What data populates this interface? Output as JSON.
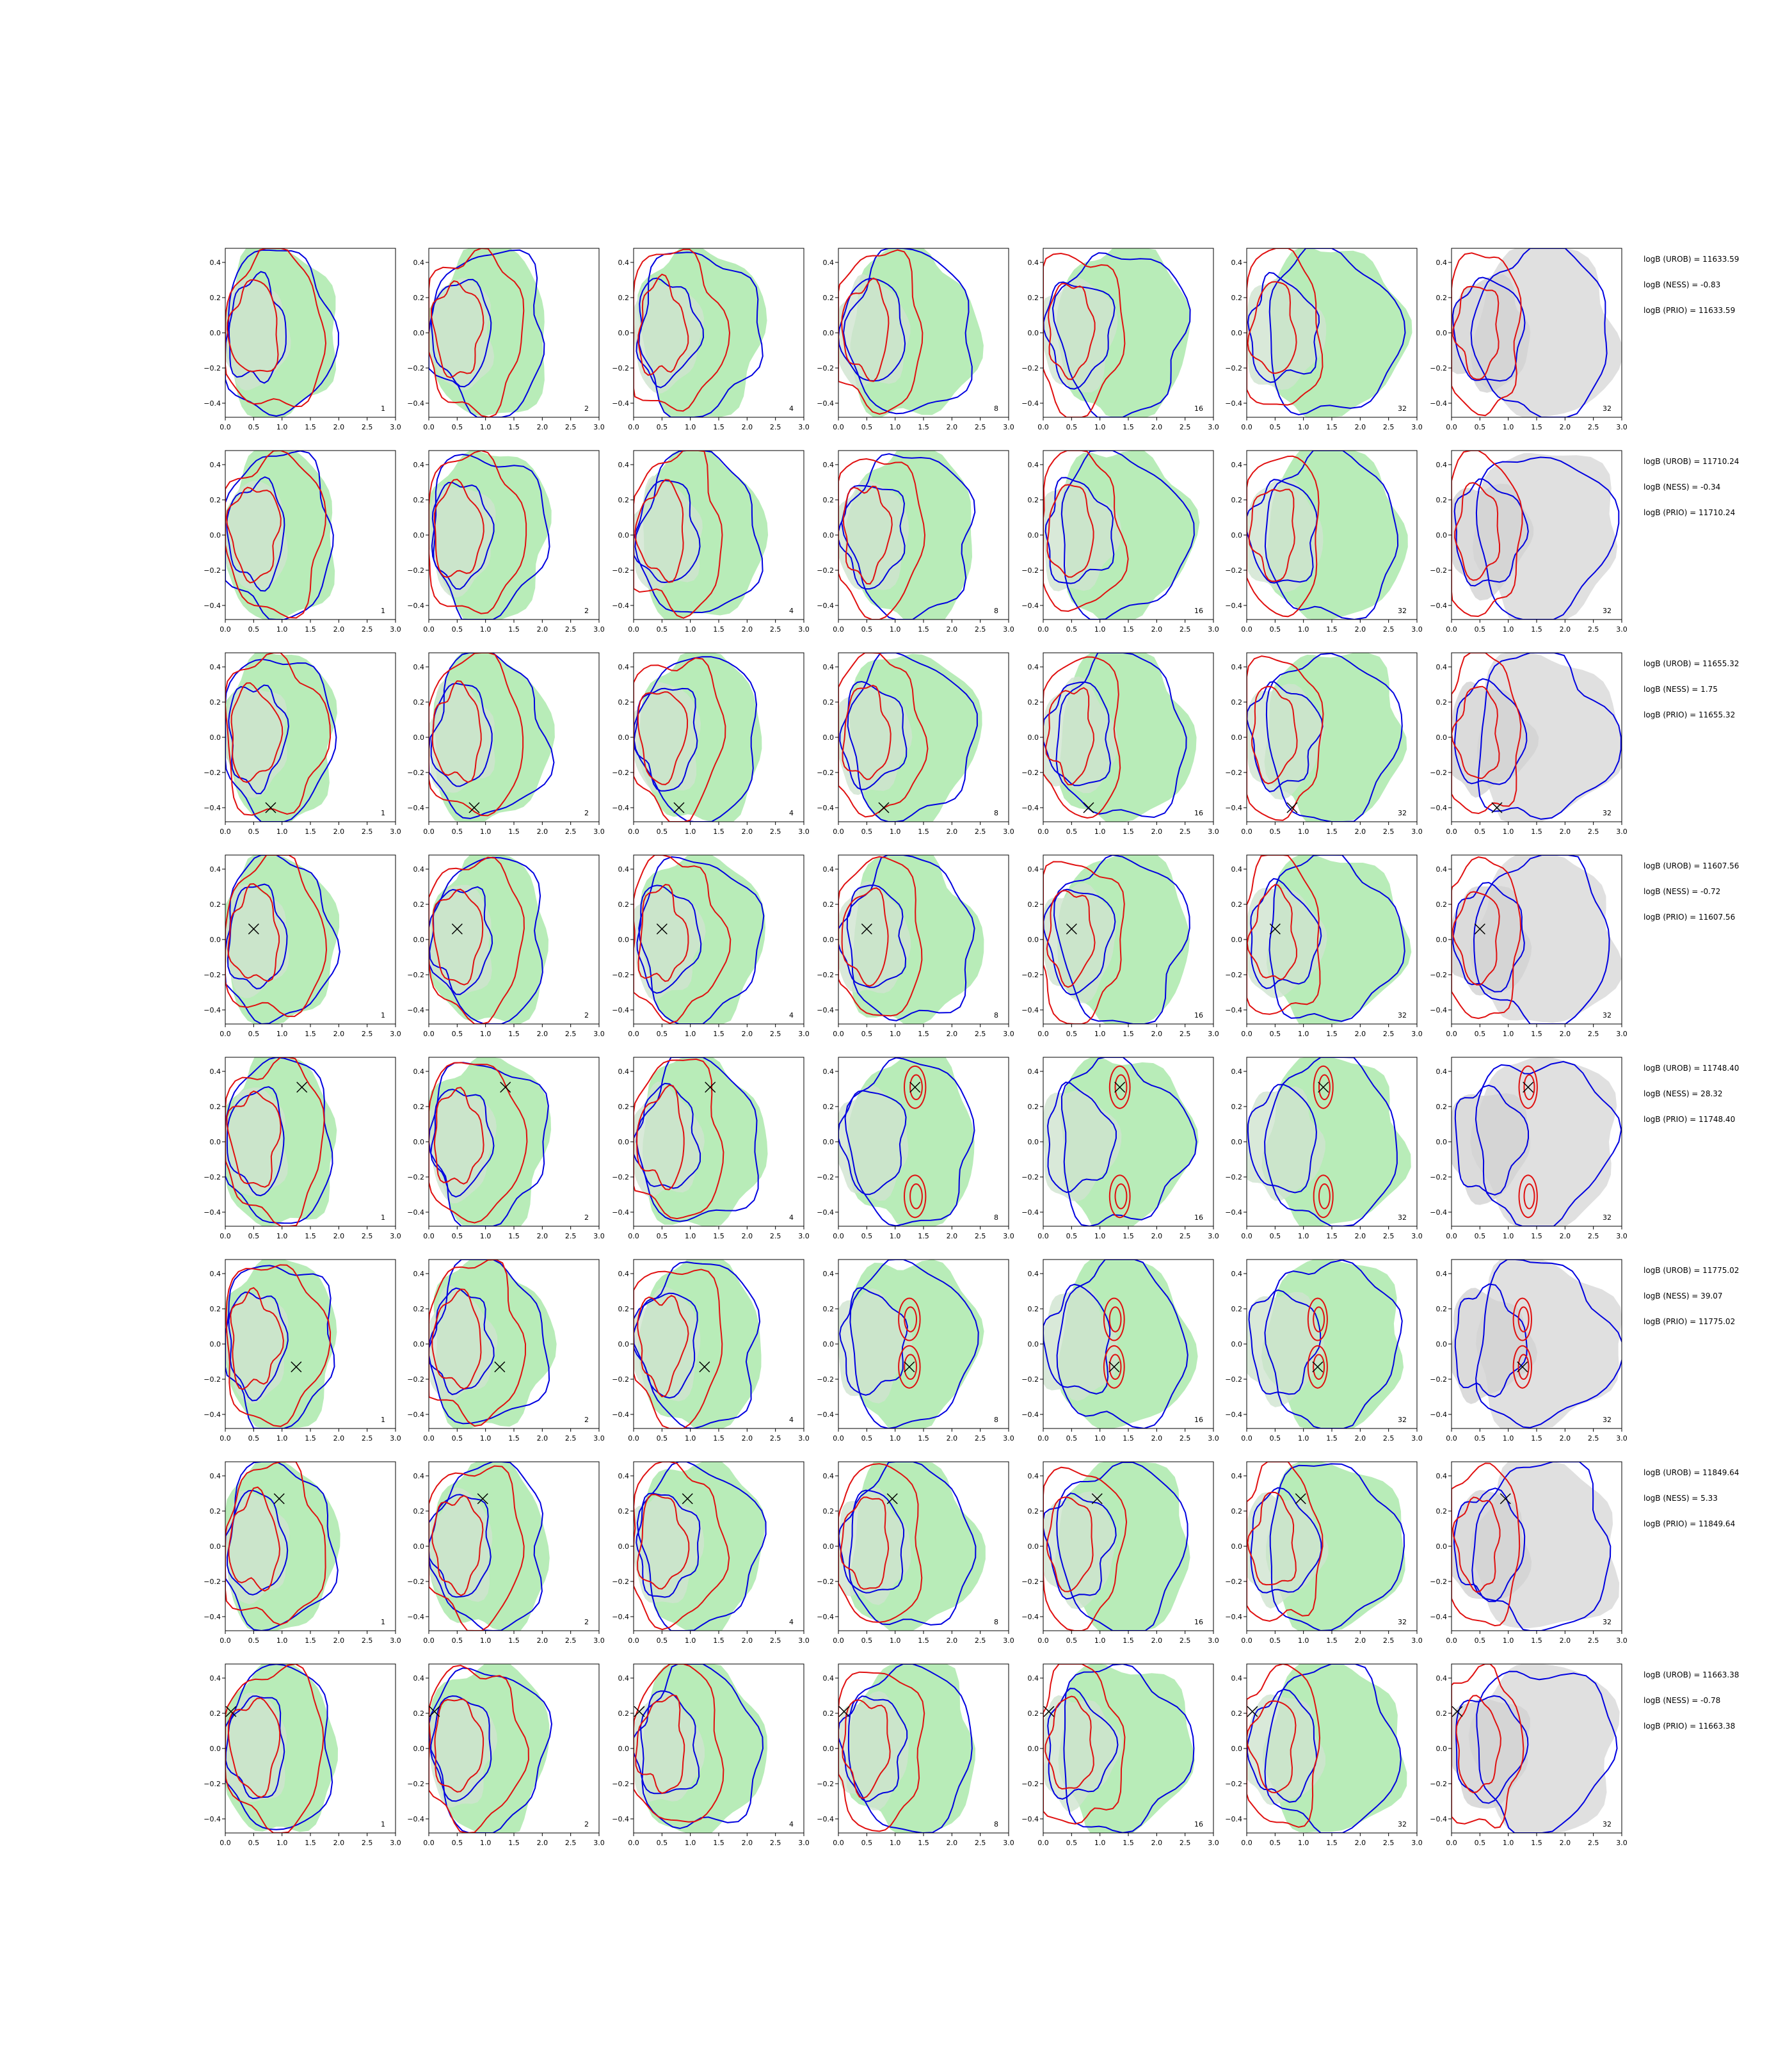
{
  "chart_data": {
    "type": "contour-grid",
    "xlim": [
      0.0,
      3.0
    ],
    "ylim": [
      -0.48,
      0.48
    ],
    "xticks": [
      "0.0",
      "0.5",
      "1.0",
      "1.5",
      "2.0",
      "2.5",
      "3.0"
    ],
    "yticks": [
      "0.4",
      "0.2",
      "0.0",
      "−0.2",
      "−0.4"
    ],
    "colors": {
      "shaded_green": "#b8ecb8",
      "shaded_gray": "#e0e0e0",
      "blue": "#0000e0",
      "red": "#e01010",
      "marker": "#000000"
    },
    "column_labels": [
      "1",
      "2",
      "4",
      "8",
      "16",
      "32",
      "32"
    ],
    "rows": [
      {
        "marker": null,
        "annotations": [
          "logB (UROB) = 11633.59",
          "logB (NESS) = -0.83",
          "logB (PRIO) = 11633.59"
        ]
      },
      {
        "marker": null,
        "annotations": [
          "logB (UROB) = 11710.24",
          "logB (NESS) = -0.34",
          "logB (PRIO) = 11710.24"
        ]
      },
      {
        "marker": [
          0.8,
          -0.4
        ],
        "annotations": [
          "logB (UROB) = 11655.32",
          "logB (NESS) = 1.75",
          "logB (PRIO) = 11655.32"
        ]
      },
      {
        "marker": [
          0.5,
          0.06
        ],
        "annotations": [
          "logB (UROB) = 11607.56",
          "logB (NESS) = -0.72",
          "logB (PRIO) = 11607.56"
        ]
      },
      {
        "marker": [
          1.35,
          0.31
        ],
        "annotations": [
          "logB (UROB) = 11748.40",
          "logB (NESS) = 28.32",
          "logB (PRIO) = 11748.40"
        ]
      },
      {
        "marker": [
          1.25,
          -0.13
        ],
        "annotations": [
          "logB (UROB) = 11775.02",
          "logB (NESS) = 39.07",
          "logB (PRIO) = 11775.02"
        ]
      },
      {
        "marker": [
          0.95,
          0.27
        ],
        "annotations": [
          "logB (UROB) = 11849.64",
          "logB (NESS) = 5.33",
          "logB (PRIO) = 11849.64"
        ]
      },
      {
        "marker": [
          0.1,
          0.21
        ],
        "annotations": [
          "logB (UROB) = 11663.38",
          "logB (NESS) = -0.78",
          "logB (PRIO) = 11663.38"
        ]
      }
    ]
  }
}
